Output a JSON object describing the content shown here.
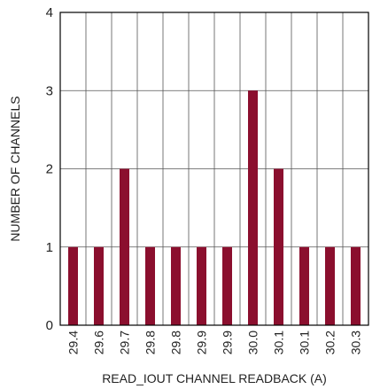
{
  "chart_data": {
    "type": "bar",
    "categories": [
      "29.4",
      "29.6",
      "29.7",
      "29.8",
      "29.8",
      "29.9",
      "29.9",
      "30.0",
      "30.1",
      "30.1",
      "30.2",
      "30.3"
    ],
    "values": [
      1,
      1,
      2,
      1,
      1,
      1,
      1,
      3,
      2,
      1,
      1,
      1
    ],
    "title": "",
    "xlabel": "READ_IOUT CHANNEL READBACK (A)",
    "ylabel": "NUMBER OF CHANNELS",
    "ylim": [
      0,
      4
    ],
    "yticks": [
      0,
      1,
      2,
      3,
      4
    ],
    "grid": true,
    "bar_color": "#8b0f2e"
  }
}
